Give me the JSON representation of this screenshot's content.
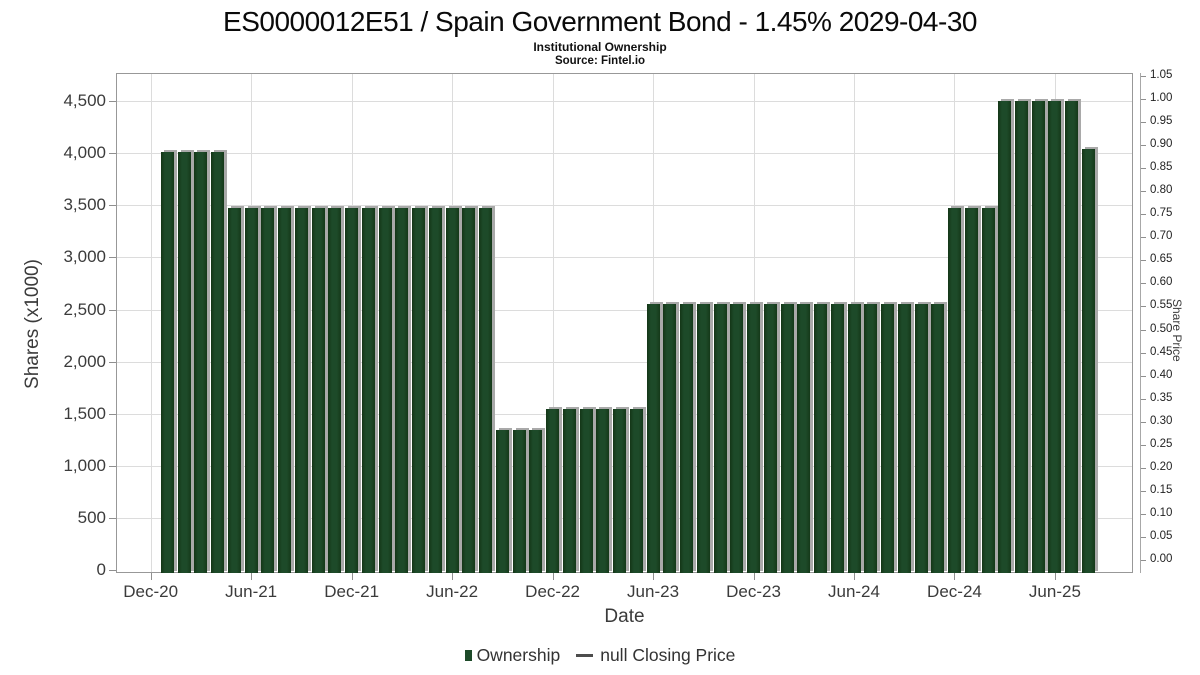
{
  "header": {
    "title": "ES0000012E51 / Spain Government Bond - 1.45% 2029-04-30",
    "subtitle": "Institutional Ownership",
    "source": "Source: Fintel.io"
  },
  "chart_data": {
    "type": "bar",
    "title": "ES0000012E51 / Spain Government Bond - 1.45% 2029-04-30",
    "subtitle": "Institutional Ownership",
    "source": "Source: Fintel.io",
    "xlabel": "Date",
    "ylabel_left": "Shares (x1000)",
    "ylabel_right": "Share Price",
    "grid": true,
    "legend_position": "bottom",
    "x_tick_labels": [
      "Dec-20",
      "Jun-21",
      "Dec-21",
      "Jun-22",
      "Dec-22",
      "Jun-23",
      "Dec-23",
      "Jun-24",
      "Dec-24",
      "Jun-25"
    ],
    "left_axis": {
      "min": 0,
      "max": 4500,
      "tick_step": 500,
      "tick_labels": [
        "0",
        "500",
        "1,000",
        "1,500",
        "2,000",
        "2,500",
        "3,000",
        "3,500",
        "4,000",
        "4,500"
      ]
    },
    "right_axis": {
      "min": 0.0,
      "max": 1.05,
      "tick_step": 0.05,
      "tick_labels": [
        "0.00",
        "0.05",
        "0.10",
        "0.15",
        "0.20",
        "0.25",
        "0.30",
        "0.35",
        "0.40",
        "0.45",
        "0.50",
        "0.55",
        "0.60",
        "0.65",
        "0.70",
        "0.75",
        "0.80",
        "0.85",
        "0.90",
        "0.95",
        "1.00",
        "1.05"
      ]
    },
    "series": [
      {
        "name": "Ownership",
        "type": "bar",
        "color": "#1d4a29",
        "months": [
          "Jan-21",
          "Feb-21",
          "Mar-21",
          "Apr-21",
          "May-21",
          "Jun-21",
          "Jul-21",
          "Aug-21",
          "Sep-21",
          "Oct-21",
          "Nov-21",
          "Dec-21",
          "Jan-22",
          "Feb-22",
          "Mar-22",
          "Apr-22",
          "May-22",
          "Jun-22",
          "Jul-22",
          "Aug-22",
          "Sep-22",
          "Oct-22",
          "Nov-22",
          "Dec-22",
          "Jan-23",
          "Feb-23",
          "Mar-23",
          "Apr-23",
          "May-23",
          "Jun-23",
          "Jul-23",
          "Aug-23",
          "Sep-23",
          "Oct-23",
          "Nov-23",
          "Dec-23",
          "Jan-24",
          "Feb-24",
          "Mar-24",
          "Apr-24",
          "May-24",
          "Jun-24",
          "Jul-24",
          "Aug-24",
          "Sep-24",
          "Oct-24",
          "Nov-24",
          "Dec-24",
          "Jan-25",
          "Feb-25",
          "Mar-25",
          "Apr-25",
          "May-25",
          "Jun-25",
          "Jul-25",
          "Aug-25"
        ],
        "values": [
          4010,
          4010,
          4010,
          4010,
          3470,
          3470,
          3470,
          3470,
          3470,
          3470,
          3470,
          3470,
          3470,
          3470,
          3470,
          3470,
          3470,
          3470,
          3470,
          3470,
          1345,
          1345,
          1345,
          1550,
          1550,
          1550,
          1550,
          1550,
          1550,
          2550,
          2550,
          2550,
          2550,
          2550,
          2550,
          2550,
          2550,
          2550,
          2550,
          2550,
          2550,
          2550,
          2550,
          2550,
          2550,
          2550,
          2550,
          3470,
          3470,
          3470,
          4500,
          4500,
          4500,
          4500,
          4500,
          4040
        ]
      },
      {
        "name": "null Closing Price",
        "type": "line",
        "color": "#4d4d4d",
        "values": []
      }
    ]
  },
  "legend": {
    "items": [
      {
        "label": "Ownership",
        "marker": "square",
        "color": "#1d4a29"
      },
      {
        "label": "null Closing Price",
        "marker": "line",
        "color": "#4d4d4d"
      }
    ]
  },
  "colors": {
    "bar": "#1d4a29",
    "bar_shadow": "#a9a9a9",
    "gridline": "#dcdcdc",
    "axis": "#8f8f8f",
    "text": "#3b3b3b"
  }
}
